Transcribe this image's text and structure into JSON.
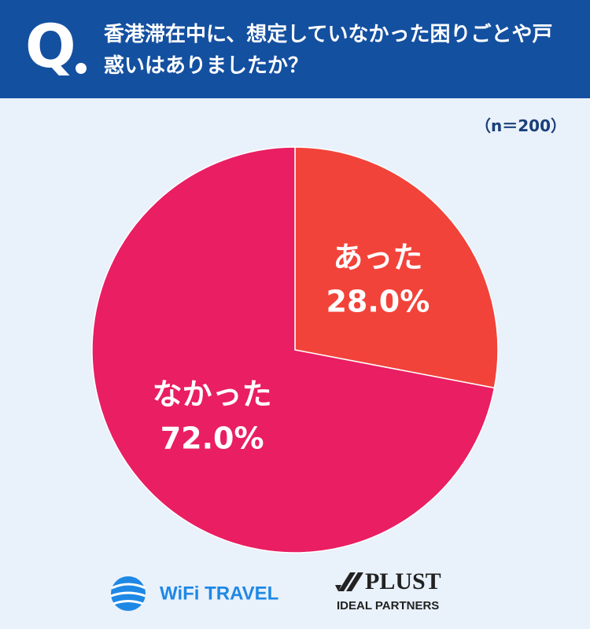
{
  "question_marker": "Q",
  "chart_data": {
    "type": "pie",
    "title": "香港滞在中に、想定していなかった困りごとや戸惑いはありましたか？",
    "note": "（n＝200）",
    "categories": [
      "あった",
      "なかった"
    ],
    "values": [
      28,
      72
    ],
    "value_labels": [
      "28.0%",
      "72.0%"
    ],
    "colors": [
      "#f2433a",
      "#e91e63"
    ]
  },
  "logos": {
    "wifi_travel": "WiFi TRAVEL",
    "plust": "PLUST",
    "plust_sub": "IDEAL PARTNERS"
  }
}
